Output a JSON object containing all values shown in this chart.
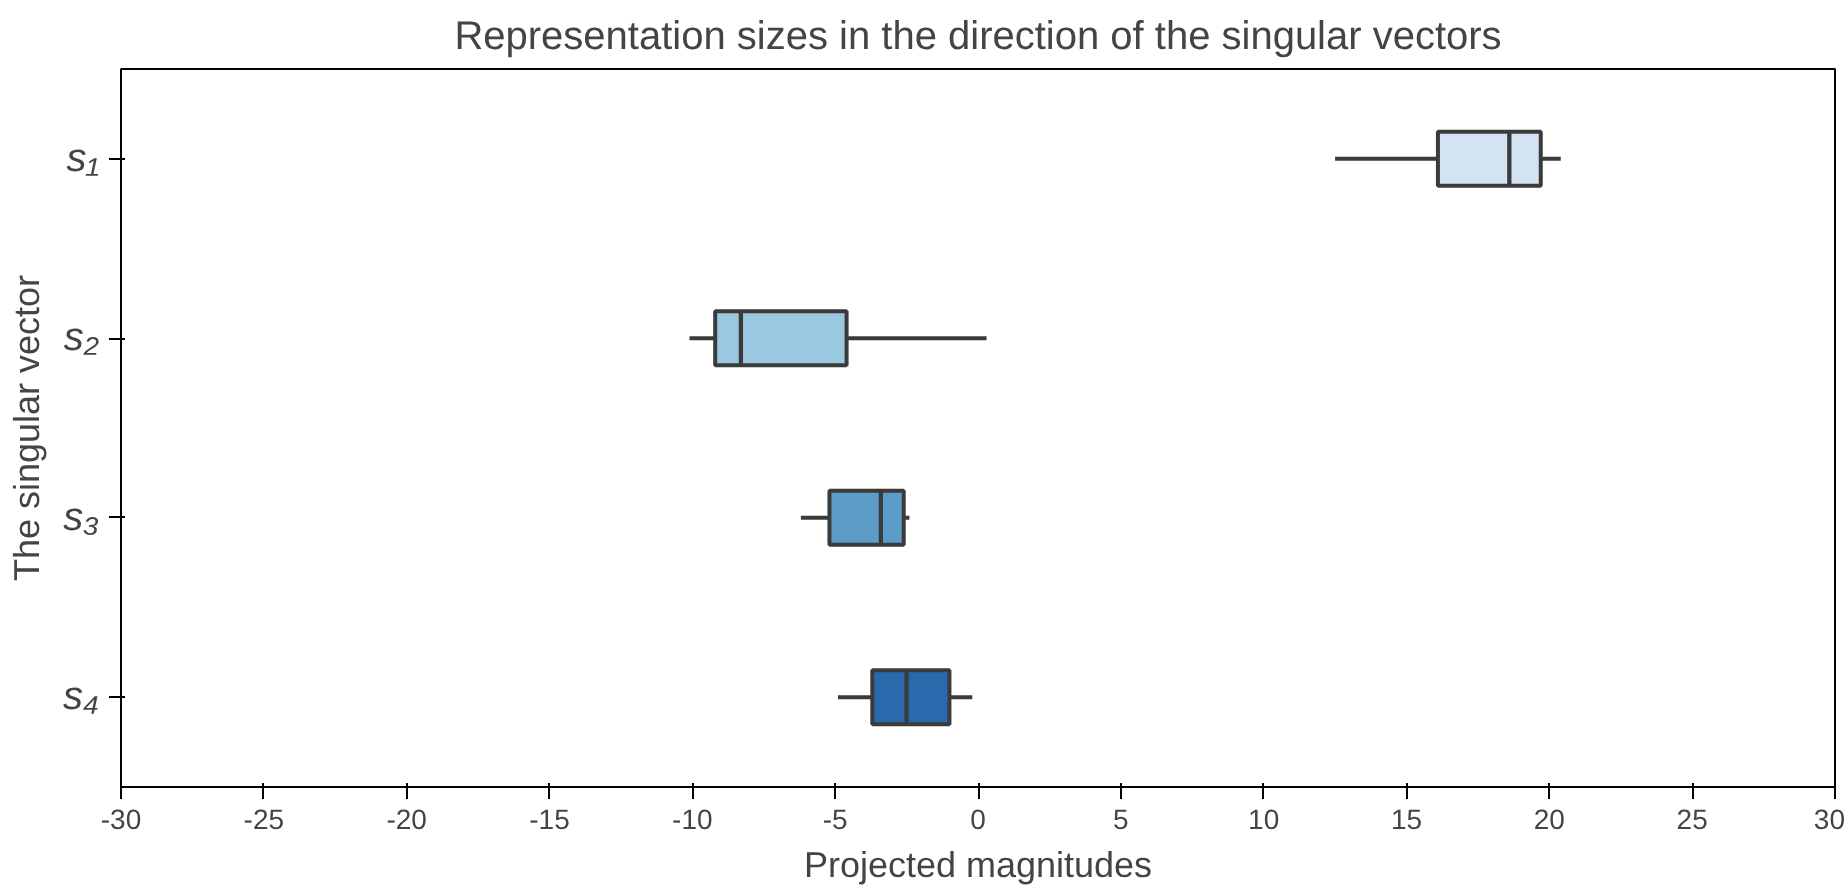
{
  "chart_data": {
    "type": "box",
    "orientation": "horizontal",
    "title": "Representation sizes in the direction of the singular vectors",
    "xlabel": "Projected magnitudes",
    "ylabel": "The singular vector",
    "categories": [
      "s₁",
      "s₂",
      "s₃",
      "s₄"
    ],
    "colors": [
      "#d4e3f3",
      "#9ac8e0",
      "#5b9cc9",
      "#2a69ab"
    ],
    "boxes": [
      {
        "low": 12.5,
        "q1": 16.1,
        "median": 18.6,
        "q3": 19.7,
        "high": 20.4
      },
      {
        "low": -10.1,
        "q1": -9.2,
        "median": -8.3,
        "q3": -4.6,
        "high": 0.3
      },
      {
        "low": -6.2,
        "q1": -5.2,
        "median": -3.4,
        "q3": -2.6,
        "high": -2.4
      },
      {
        "low": -4.9,
        "q1": -3.7,
        "median": -2.5,
        "q3": -1.0,
        "high": -0.2
      }
    ],
    "xlim": [
      -30,
      30
    ],
    "xticks": [
      -30,
      -25,
      -20,
      -15,
      -10,
      -5,
      0,
      5,
      10,
      15,
      20,
      25,
      30
    ],
    "grid": false
  }
}
